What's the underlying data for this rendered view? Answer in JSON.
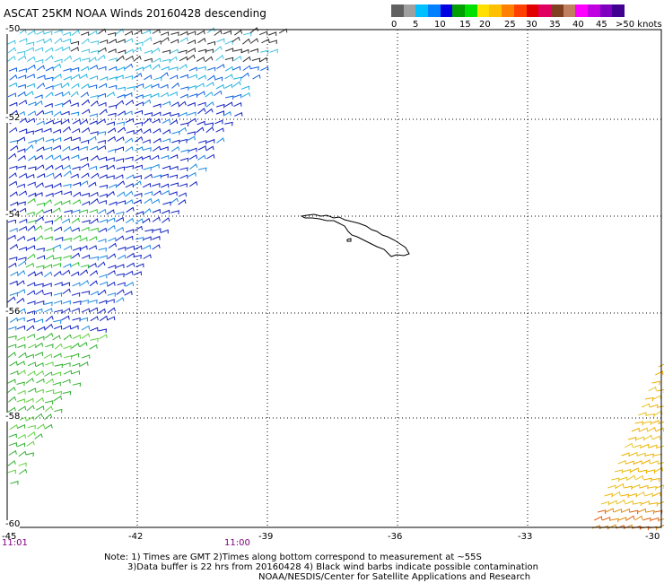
{
  "title": "ASCAT 25KM NOAA Winds 20160428 descending",
  "colorbar": {
    "colors": [
      "#606060",
      "#a0a0a0",
      "#00c0ff",
      "#0080ff",
      "#0000e0",
      "#00a000",
      "#00e000",
      "#ffe000",
      "#ffc000",
      "#ff8000",
      "#ff4000",
      "#e00000",
      "#e00060",
      "#804020",
      "#c08060",
      "#ff00ff",
      "#c000e0",
      "#8000c0",
      "#400090"
    ],
    "labels": [
      "0",
      "5",
      "10",
      "15",
      "20",
      "25",
      "30",
      "35",
      "40",
      "45",
      ">50 knots"
    ]
  },
  "map": {
    "lon_labels": [
      "-45",
      "-42",
      "-39",
      "-36",
      "-33",
      "-30"
    ],
    "lat_labels": [
      "-50",
      "-52",
      "-54",
      "-56",
      "-58",
      "-60"
    ],
    "lon_range": [
      -45,
      -30
    ],
    "lat_range": [
      -50,
      -60
    ],
    "grid": true
  },
  "time_labels": [
    "11:01",
    "11:00"
  ],
  "notes": {
    "line1": "Note: 1) Times are GMT 2)Times along bottom correspond to measurement at ~55S",
    "line2": "3)Data buffer is 22 hrs from 20160428 4) Black wind barbs indicate possible contamination",
    "line3": "NOAA/NESDIS/Center for Satellite Applications and Research"
  }
}
